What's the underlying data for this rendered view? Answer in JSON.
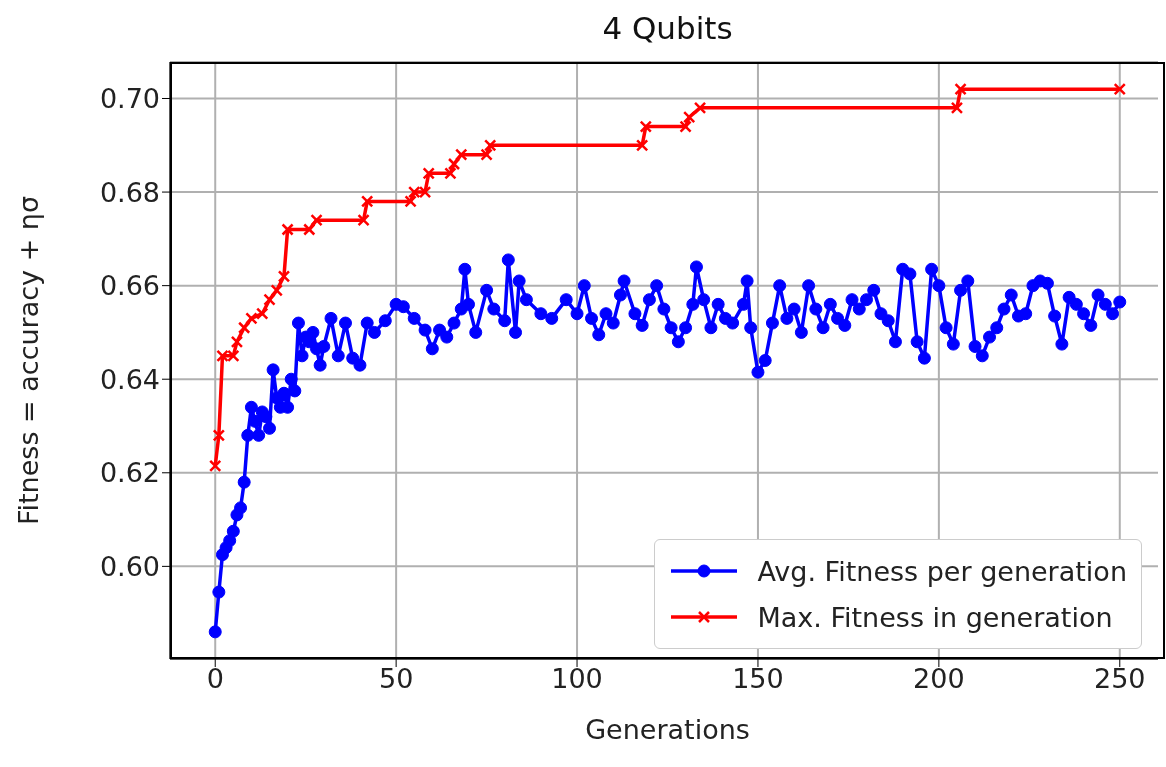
{
  "chart_data": {
    "type": "line",
    "title": "4 Qubits",
    "xlabel": "Generations",
    "ylabel": "Fitness = accuracy + ησ",
    "xlim": [
      -12.5,
      262.5
    ],
    "xticks": [
      0,
      50,
      100,
      150,
      200,
      250
    ],
    "ylim": [
      0.5802,
      0.7078
    ],
    "yticks": [
      {
        "value": 0.6,
        "label": "0.60"
      },
      {
        "value": 0.62,
        "label": "0.62"
      },
      {
        "value": 0.64,
        "label": "0.64"
      },
      {
        "value": 0.66,
        "label": "0.66"
      },
      {
        "value": 0.68,
        "label": "0.68"
      },
      {
        "value": 0.7,
        "label": "0.70"
      }
    ],
    "grid": true,
    "legend": "bottom right",
    "line_style": "solid",
    "series": [
      {
        "name": "Avg. Fitness per generation",
        "color": "#0000ff",
        "marker": "circle",
        "x": [
          0,
          1,
          2,
          3,
          4,
          5,
          6,
          7,
          8,
          9,
          10,
          11,
          12,
          13,
          14,
          15,
          16,
          17,
          18,
          19,
          20,
          21,
          22,
          23,
          24,
          25,
          26,
          27,
          28,
          29,
          30,
          32,
          34,
          36,
          38,
          40,
          42,
          44,
          47,
          50,
          52,
          55,
          58,
          60,
          62,
          64,
          66,
          68,
          69,
          70,
          72,
          75,
          77,
          80,
          81,
          83,
          84,
          86,
          90,
          93,
          97,
          100,
          102,
          104,
          106,
          108,
          110,
          112,
          113,
          116,
          118,
          120,
          122,
          124,
          126,
          128,
          130,
          132,
          133,
          135,
          137,
          139,
          141,
          143,
          146,
          147,
          148,
          150,
          152,
          154,
          156,
          158,
          160,
          162,
          164,
          166,
          168,
          170,
          172,
          174,
          176,
          178,
          180,
          182,
          184,
          186,
          188,
          190,
          192,
          194,
          196,
          198,
          200,
          202,
          204,
          206,
          208,
          210,
          212,
          214,
          216,
          218,
          220,
          222,
          224,
          226,
          228,
          230,
          232,
          234,
          236,
          238,
          240,
          242,
          244,
          246,
          248,
          250
        ],
        "values": [
          0.586,
          0.5945,
          0.6025,
          0.604,
          0.6055,
          0.6075,
          0.611,
          0.6125,
          0.618,
          0.628,
          0.634,
          0.631,
          0.628,
          0.633,
          0.632,
          0.6295,
          0.642,
          0.636,
          0.634,
          0.637,
          0.634,
          0.64,
          0.6375,
          0.652,
          0.645,
          0.649,
          0.648,
          0.65,
          0.6465,
          0.643,
          0.647,
          0.653,
          0.645,
          0.652,
          0.6445,
          0.643,
          0.652,
          0.65,
          0.6525,
          0.656,
          0.6555,
          0.653,
          0.6505,
          0.6465,
          0.6505,
          0.649,
          0.652,
          0.655,
          0.6635,
          0.656,
          0.65,
          0.659,
          0.655,
          0.6525,
          0.6655,
          0.65,
          0.661,
          0.657,
          0.654,
          0.653,
          0.657,
          0.654,
          0.66,
          0.653,
          0.6495,
          0.654,
          0.652,
          0.658,
          0.661,
          0.654,
          0.6515,
          0.657,
          0.66,
          0.655,
          0.651,
          0.648,
          0.651,
          0.656,
          0.664,
          0.657,
          0.651,
          0.656,
          0.653,
          0.652,
          0.656,
          0.661,
          0.651,
          0.6415,
          0.644,
          0.652,
          0.66,
          0.653,
          0.655,
          0.65,
          0.66,
          0.655,
          0.651,
          0.656,
          0.653,
          0.6515,
          0.657,
          0.655,
          0.657,
          0.659,
          0.654,
          0.6525,
          0.648,
          0.6635,
          0.6625,
          0.648,
          0.6445,
          0.6635,
          0.66,
          0.651,
          0.6475,
          0.659,
          0.661,
          0.647,
          0.645,
          0.649,
          0.651,
          0.655,
          0.658,
          0.6535,
          0.654,
          0.66,
          0.661,
          0.6605,
          0.6535,
          0.6475,
          0.6575,
          0.656,
          0.654,
          0.6515,
          0.658,
          0.656,
          0.654,
          0.6565
        ]
      },
      {
        "name": "Max. Fitness in generation",
        "color": "#ff0000",
        "marker": "cross",
        "x": [
          0,
          1,
          2,
          5,
          6,
          8,
          10,
          13,
          15,
          17,
          19,
          20,
          26,
          28,
          41,
          42,
          54,
          55,
          58,
          59,
          65,
          66,
          68,
          75,
          76,
          118,
          119,
          130,
          131,
          134,
          205,
          206,
          250
        ],
        "values": [
          0.6215,
          0.628,
          0.645,
          0.645,
          0.648,
          0.651,
          0.653,
          0.654,
          0.657,
          0.659,
          0.662,
          0.672,
          0.672,
          0.674,
          0.674,
          0.678,
          0.678,
          0.68,
          0.68,
          0.684,
          0.684,
          0.686,
          0.688,
          0.688,
          0.69,
          0.69,
          0.694,
          0.694,
          0.696,
          0.698,
          0.698,
          0.702,
          0.702
        ]
      }
    ]
  }
}
